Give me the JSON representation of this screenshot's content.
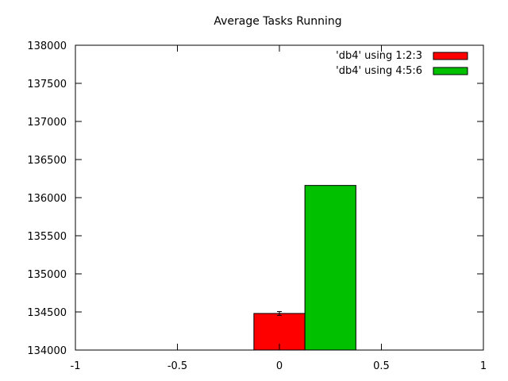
{
  "chart_data": {
    "type": "bar",
    "title": "Average Tasks Running",
    "xlabel": "",
    "ylabel": "",
    "xlim": [
      -1,
      1
    ],
    "ylim": [
      134000,
      138000
    ],
    "x_ticks": [
      "-1",
      "-0.5",
      "0",
      "0.5",
      "1"
    ],
    "y_ticks": [
      "134000",
      "134500",
      "135000",
      "135500",
      "136000",
      "136500",
      "137000",
      "137500",
      "138000"
    ],
    "grid": false,
    "legend_position": "top-right",
    "series": [
      {
        "name": "'db4' using 1:2:3",
        "color": "#ff0000",
        "x": 0,
        "width": 0.25,
        "value": 134480,
        "error": 25
      },
      {
        "name": "'db4' using 4:5:6",
        "color": "#00c000",
        "x": 0.25,
        "width": 0.25,
        "value": 136160,
        "error": 0
      }
    ]
  }
}
